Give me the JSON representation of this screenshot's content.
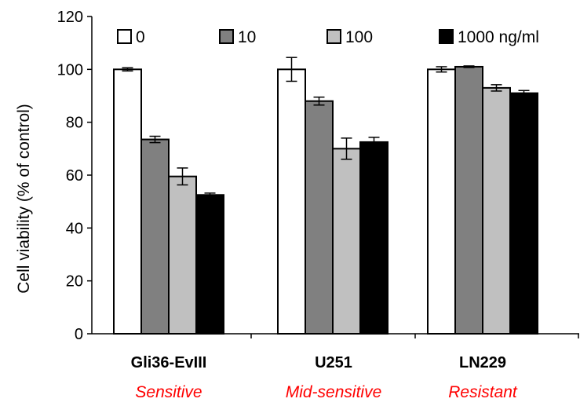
{
  "chart_data": {
    "type": "bar",
    "ylabel": "Cell  viability (% of control)",
    "ylim": [
      0,
      120
    ],
    "yticks": [
      0,
      20,
      40,
      60,
      80,
      100,
      120
    ],
    "categories": [
      "Gli36-EvIII",
      "U251",
      "LN229"
    ],
    "category_sublabels": [
      "Sensitive",
      "Mid-sensitive",
      "Resistant"
    ],
    "series": [
      {
        "name": "0",
        "values": [
          100,
          100,
          100
        ],
        "errors": [
          0.6,
          4.5,
          1.0
        ]
      },
      {
        "name": "10",
        "values": [
          73.5,
          88,
          101
        ],
        "errors": [
          1.2,
          1.5,
          0.3
        ]
      },
      {
        "name": "100",
        "values": [
          59.5,
          70,
          93
        ],
        "errors": [
          3.2,
          4.0,
          1.2
        ]
      },
      {
        "name": "1000 ng/ml",
        "values": [
          52.5,
          72.5,
          91
        ],
        "errors": [
          0.7,
          1.8,
          1.0
        ]
      }
    ],
    "grid": false,
    "legend_position": "top"
  },
  "colors": {
    "series": [
      "#ffffff",
      "#808080",
      "#c0c0c0",
      "#000000"
    ],
    "sublabel": "#ff0000",
    "axis": "#000000"
  }
}
